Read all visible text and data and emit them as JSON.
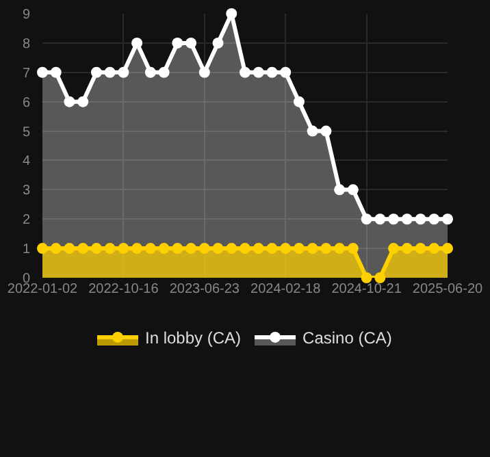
{
  "chart_data": {
    "type": "area",
    "categories": [
      "2022-01-02",
      null,
      null,
      null,
      null,
      null,
      "2022-10-16",
      null,
      null,
      null,
      null,
      null,
      "2023-06-23",
      null,
      null,
      null,
      null,
      null,
      "2024-02-18",
      null,
      null,
      null,
      null,
      null,
      "2024-10-21",
      null,
      null,
      null,
      null,
      null,
      "2025-06-20"
    ],
    "series": [
      {
        "name": "In lobby (CA)",
        "color": "#ffd000",
        "values": [
          1,
          1,
          1,
          1,
          1,
          1,
          1,
          1,
          1,
          1,
          1,
          1,
          1,
          1,
          1,
          1,
          1,
          1,
          1,
          1,
          1,
          1,
          1,
          1,
          0,
          0,
          1,
          1,
          1,
          1,
          1
        ]
      },
      {
        "name": "Casino (CA)",
        "color": "#ffffff",
        "values": [
          7,
          7,
          6,
          6,
          7,
          7,
          7,
          8,
          7,
          7,
          8,
          8,
          7,
          8,
          9,
          7,
          7,
          7,
          7,
          6,
          5,
          5,
          3,
          3,
          2,
          2,
          2,
          2,
          2,
          2,
          2
        ]
      }
    ],
    "ylim": [
      0,
      9
    ],
    "yticks": [
      0,
      1,
      2,
      3,
      4,
      5,
      6,
      7,
      8,
      9
    ],
    "grid": true,
    "legend": "bottom",
    "marker": "circle",
    "line_style": "solid"
  }
}
